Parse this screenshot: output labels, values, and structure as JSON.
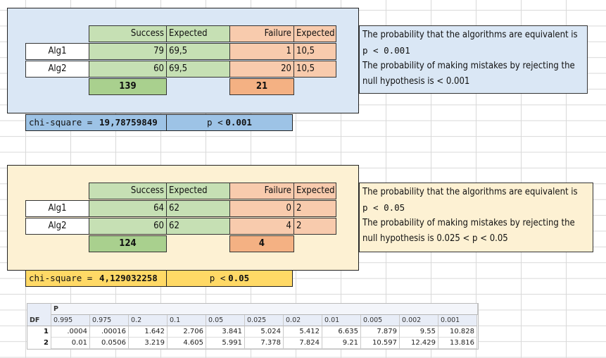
{
  "block1": {
    "headers": {
      "success": "Success",
      "expected1": "Expected",
      "failure": "Failure",
      "expected2": "Expected"
    },
    "rows": [
      {
        "label": "Alg1",
        "success": "79",
        "expected_s": "69,5",
        "failure": "1",
        "expected_f": "10,5"
      },
      {
        "label": "Alg2",
        "success": "60",
        "expected_s": "69,5",
        "failure": "20",
        "expected_f": "10,5"
      }
    ],
    "total_success": "139",
    "total_failure": "21",
    "chi_label": "chi-square =",
    "chi_value": "19,78759849",
    "p_label": "p <",
    "p_value": "0.001",
    "note_line1": "The probability that the algorithms are equivalent is",
    "note_line2": "p < 0.001",
    "note_line3": "The probability of making mistakes by rejecting the",
    "note_line4": "null hypothesis is < 0.001",
    "panel_color": "#dae7f5",
    "chi_bar_color": "#9dc3e6"
  },
  "block2": {
    "headers": {
      "success": "Success",
      "expected1": "Expected",
      "failure": "Failure",
      "expected2": "Expected"
    },
    "rows": [
      {
        "label": "Alg1",
        "success": "64",
        "expected_s": "62",
        "failure": "0",
        "expected_f": "2"
      },
      {
        "label": "Alg2",
        "success": "60",
        "expected_s": "62",
        "failure": "4",
        "expected_f": "2"
      }
    ],
    "total_success": "124",
    "total_failure": "4",
    "chi_label": "chi-square =",
    "chi_value": "4,129032258",
    "p_label": "p <",
    "p_value": "0.05",
    "note_line1": "The probability that the algorithms are equivalent is",
    "note_line2": "p < 0.05",
    "note_line3": "The probability of making mistakes by rejecting the",
    "note_line4": "null hypothesis is 0.025 < p < 0.05",
    "panel_color": "#fdf1d3",
    "chi_bar_color": "#ffd966"
  },
  "chi_table": {
    "p_header": "P",
    "df_header": "DF",
    "p_values": [
      "0.995",
      "0.975",
      "0.2",
      "0.1",
      "0.05",
      "0.025",
      "0.02",
      "0.01",
      "0.005",
      "0.002",
      "0.001"
    ],
    "row1_df": "1",
    "row1_values": [
      ".0004",
      ".00016",
      "1.642",
      "2.706",
      "3.841",
      "5.024",
      "5.412",
      "6.635",
      "7.879",
      "9.55",
      "10.828"
    ],
    "row2_df": "2",
    "row2_values": [
      "0.01",
      "0.0506",
      "3.219",
      "4.605",
      "5.991",
      "7.378",
      "7.824",
      "9.21",
      "10.597",
      "12.429",
      "13.816"
    ]
  }
}
